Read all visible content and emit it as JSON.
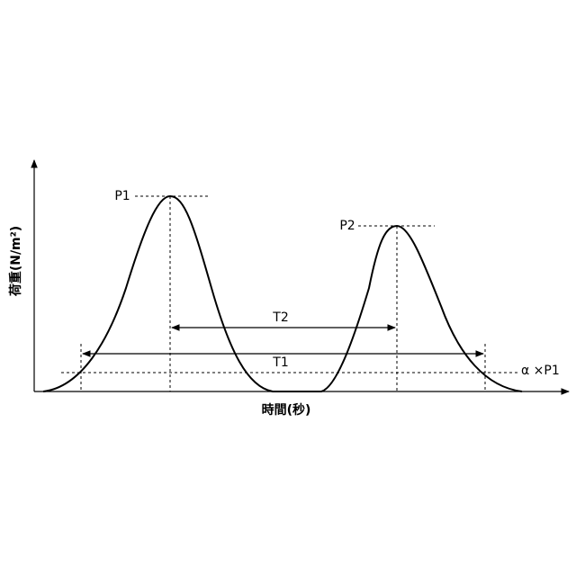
{
  "labels": {
    "p1": "P1",
    "p2": "P2",
    "t1": "T1",
    "t2": "T2",
    "alpha": "α ×P1"
  },
  "axes": {
    "y_label": "荷重(N/m²)",
    "x_label": "時間(秒)"
  }
}
